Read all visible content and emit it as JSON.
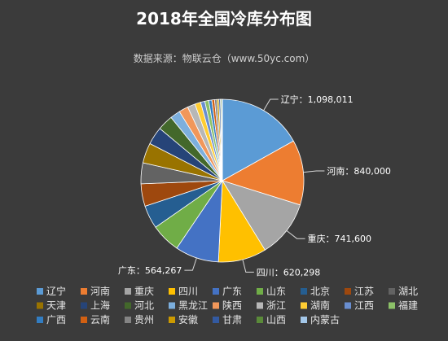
{
  "chart_data": {
    "type": "pie",
    "title": "2018年全国冷库分布图",
    "subtitle": "数据来源：物联云仓（www.50yc.com）",
    "categories": [
      "辽宁",
      "河南",
      "重庆",
      "四川",
      "广东",
      "山东",
      "北京",
      "江苏",
      "湖北",
      "天津",
      "上海",
      "河北",
      "黑龙江",
      "陕西",
      "浙江",
      "湖南",
      "江西",
      "福建",
      "广西",
      "云南",
      "贵州",
      "安徽",
      "甘肃",
      "山西",
      "内蒙古"
    ],
    "values": [
      1098011,
      840000,
      741600,
      620298,
      564267,
      380000,
      300000,
      290000,
      270000,
      260000,
      230000,
      200000,
      130000,
      120000,
      100000,
      75000,
      55000,
      50000,
      40000,
      35000,
      30000,
      25000,
      20000,
      15000,
      10000
    ],
    "colors": [
      "#5b9bd5",
      "#ed7d31",
      "#a5a5a5",
      "#ffc000",
      "#4472c4",
      "#70ad47",
      "#255e91",
      "#9e480e",
      "#636363",
      "#997300",
      "#264478",
      "#43682b",
      "#7cafdd",
      "#f1975a",
      "#b7b7b7",
      "#ffcd33",
      "#698ed0",
      "#8cc168",
      "#327dc2",
      "#d26012",
      "#848484",
      "#cc9a00",
      "#335aa1",
      "#5a8a39",
      "#a3c7e8"
    ],
    "data_labels": [
      {
        "category": "辽宁",
        "text": "辽宁：1,098,011"
      },
      {
        "category": "河南",
        "text": "河南：840,000"
      },
      {
        "category": "重庆",
        "text": "重庆：741,600"
      },
      {
        "category": "四川",
        "text": "四川：620,298"
      },
      {
        "category": "广东",
        "text": "广东：564,267"
      }
    ],
    "legend": {
      "position": "bottom",
      "columns": 9
    },
    "background": "#3b3b3b"
  }
}
